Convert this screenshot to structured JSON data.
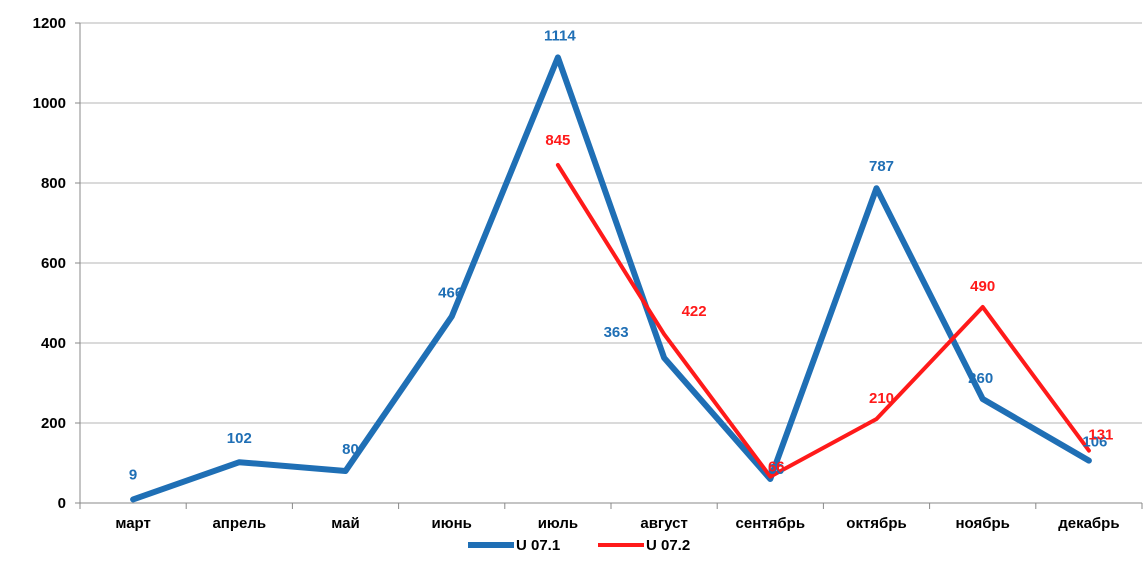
{
  "chart_data": {
    "type": "line",
    "categories": [
      "март",
      "апрель",
      "май",
      "июнь",
      "июль",
      "август",
      "сентябрь",
      "октябрь",
      "ноябрь",
      "декабрь"
    ],
    "ylim": [
      0,
      1200
    ],
    "yticks": [
      0,
      200,
      400,
      600,
      800,
      1000,
      1200
    ],
    "grid": true,
    "legend_position": "bottom",
    "series": [
      {
        "name": "U 07.1",
        "color": "#1F6FB5",
        "values": [
          9,
          102,
          80,
          466,
          1114,
          363,
          60,
          787,
          260,
          106
        ],
        "labels": [
          "9",
          "102",
          "80",
          "466",
          "1114",
          "363",
          "60",
          "787",
          "260",
          "106"
        ]
      },
      {
        "name": "U 07.2",
        "color": "#FF1A1A",
        "values": [
          null,
          null,
          null,
          null,
          845,
          422,
          66,
          210,
          490,
          131
        ],
        "labels": [
          null,
          null,
          null,
          null,
          "845",
          "422",
          "66",
          "210",
          "490",
          "131"
        ]
      }
    ]
  }
}
